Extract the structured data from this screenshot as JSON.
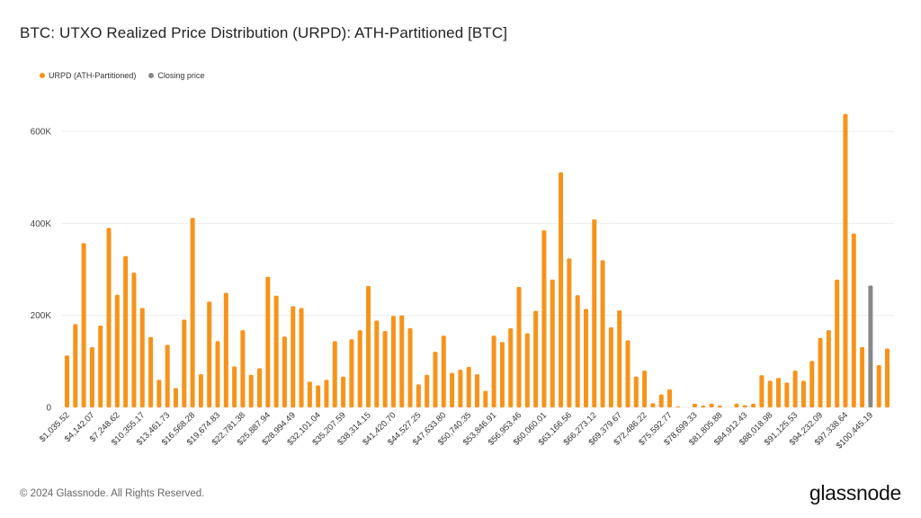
{
  "chart_data": {
    "type": "bar",
    "title": "BTC: UTXO Realized Price Distribution (URPD): ATH-Partitioned [BTC]",
    "xlabel": "",
    "ylabel": "",
    "ylim": [
      0,
      700000
    ],
    "yticks": [
      0,
      200000,
      400000,
      600000
    ],
    "ytick_labels": [
      "0",
      "200K",
      "400K",
      "600K"
    ],
    "xtick_labels": [
      "$1,035.52",
      "$4,142.07",
      "$7,248.62",
      "$10,355.17",
      "$13,461.73",
      "$16,568.28",
      "$19,674.83",
      "$22,781.38",
      "$25,887.94",
      "$28,994.49",
      "$32,101.04",
      "$35,207.59",
      "$38,314.15",
      "$41,420.70",
      "$44,527.25",
      "$47,633.80",
      "$50,740.35",
      "$53,846.91",
      "$56,953.46",
      "$60,060.01",
      "$63,166.56",
      "$66,273.12",
      "$69,379.67",
      "$72,486.22",
      "$75,592.77",
      "$78,699.33",
      "$81,805.88",
      "$84,912.43",
      "$88,018.98",
      "$91,125.53",
      "$94,232.09",
      "$97,338.64",
      "$100,445.19"
    ],
    "xtick_every": 3,
    "grid": true,
    "legend_position": "top-left",
    "series": [
      {
        "name": "URPD (ATH-Partitioned)",
        "color": "#f7931a",
        "values": [
          113000,
          181000,
          357000,
          131000,
          178000,
          390000,
          245000,
          329000,
          293000,
          216000,
          153000,
          60000,
          136000,
          42000,
          191000,
          412000,
          72000,
          230000,
          144000,
          249000,
          89000,
          168000,
          71000,
          85000,
          284000,
          243000,
          154000,
          220000,
          216000,
          56000,
          48000,
          60000,
          144000,
          67000,
          148000,
          168000,
          264000,
          189000,
          166000,
          199000,
          200000,
          172000,
          50000,
          71000,
          121000,
          156000,
          75000,
          82000,
          88000,
          72000,
          36000,
          156000,
          142000,
          172000,
          262000,
          161000,
          210000,
          385000,
          278000,
          511000,
          324000,
          244000,
          214000,
          409000,
          320000,
          174000,
          211000,
          146000,
          67000,
          80000,
          9000,
          28000,
          39000,
          2000,
          0,
          8000,
          4000,
          8000,
          4000,
          0,
          8000,
          5000,
          8000,
          70000,
          58000,
          64000,
          54000,
          80000,
          58000,
          101000,
          151000,
          168000,
          278000,
          638000,
          378000,
          131000,
          0,
          92000,
          128000
        ]
      },
      {
        "name": "Closing price",
        "color": "#888888",
        "values": [
          0,
          0,
          0,
          0,
          0,
          0,
          0,
          0,
          0,
          0,
          0,
          0,
          0,
          0,
          0,
          0,
          0,
          0,
          0,
          0,
          0,
          0,
          0,
          0,
          0,
          0,
          0,
          0,
          0,
          0,
          0,
          0,
          0,
          0,
          0,
          0,
          0,
          0,
          0,
          0,
          0,
          0,
          0,
          0,
          0,
          0,
          0,
          0,
          0,
          0,
          0,
          0,
          0,
          0,
          0,
          0,
          0,
          0,
          0,
          0,
          0,
          0,
          0,
          0,
          0,
          0,
          0,
          0,
          0,
          0,
          0,
          0,
          0,
          0,
          0,
          0,
          0,
          0,
          0,
          0,
          0,
          0,
          0,
          0,
          0,
          0,
          0,
          0,
          0,
          0,
          0,
          0,
          0,
          0,
          0,
          0,
          265000,
          0,
          0
        ]
      }
    ]
  },
  "footer": {
    "copyright": "© 2024 Glassnode. All Rights Reserved.",
    "logo": "glassnode"
  }
}
